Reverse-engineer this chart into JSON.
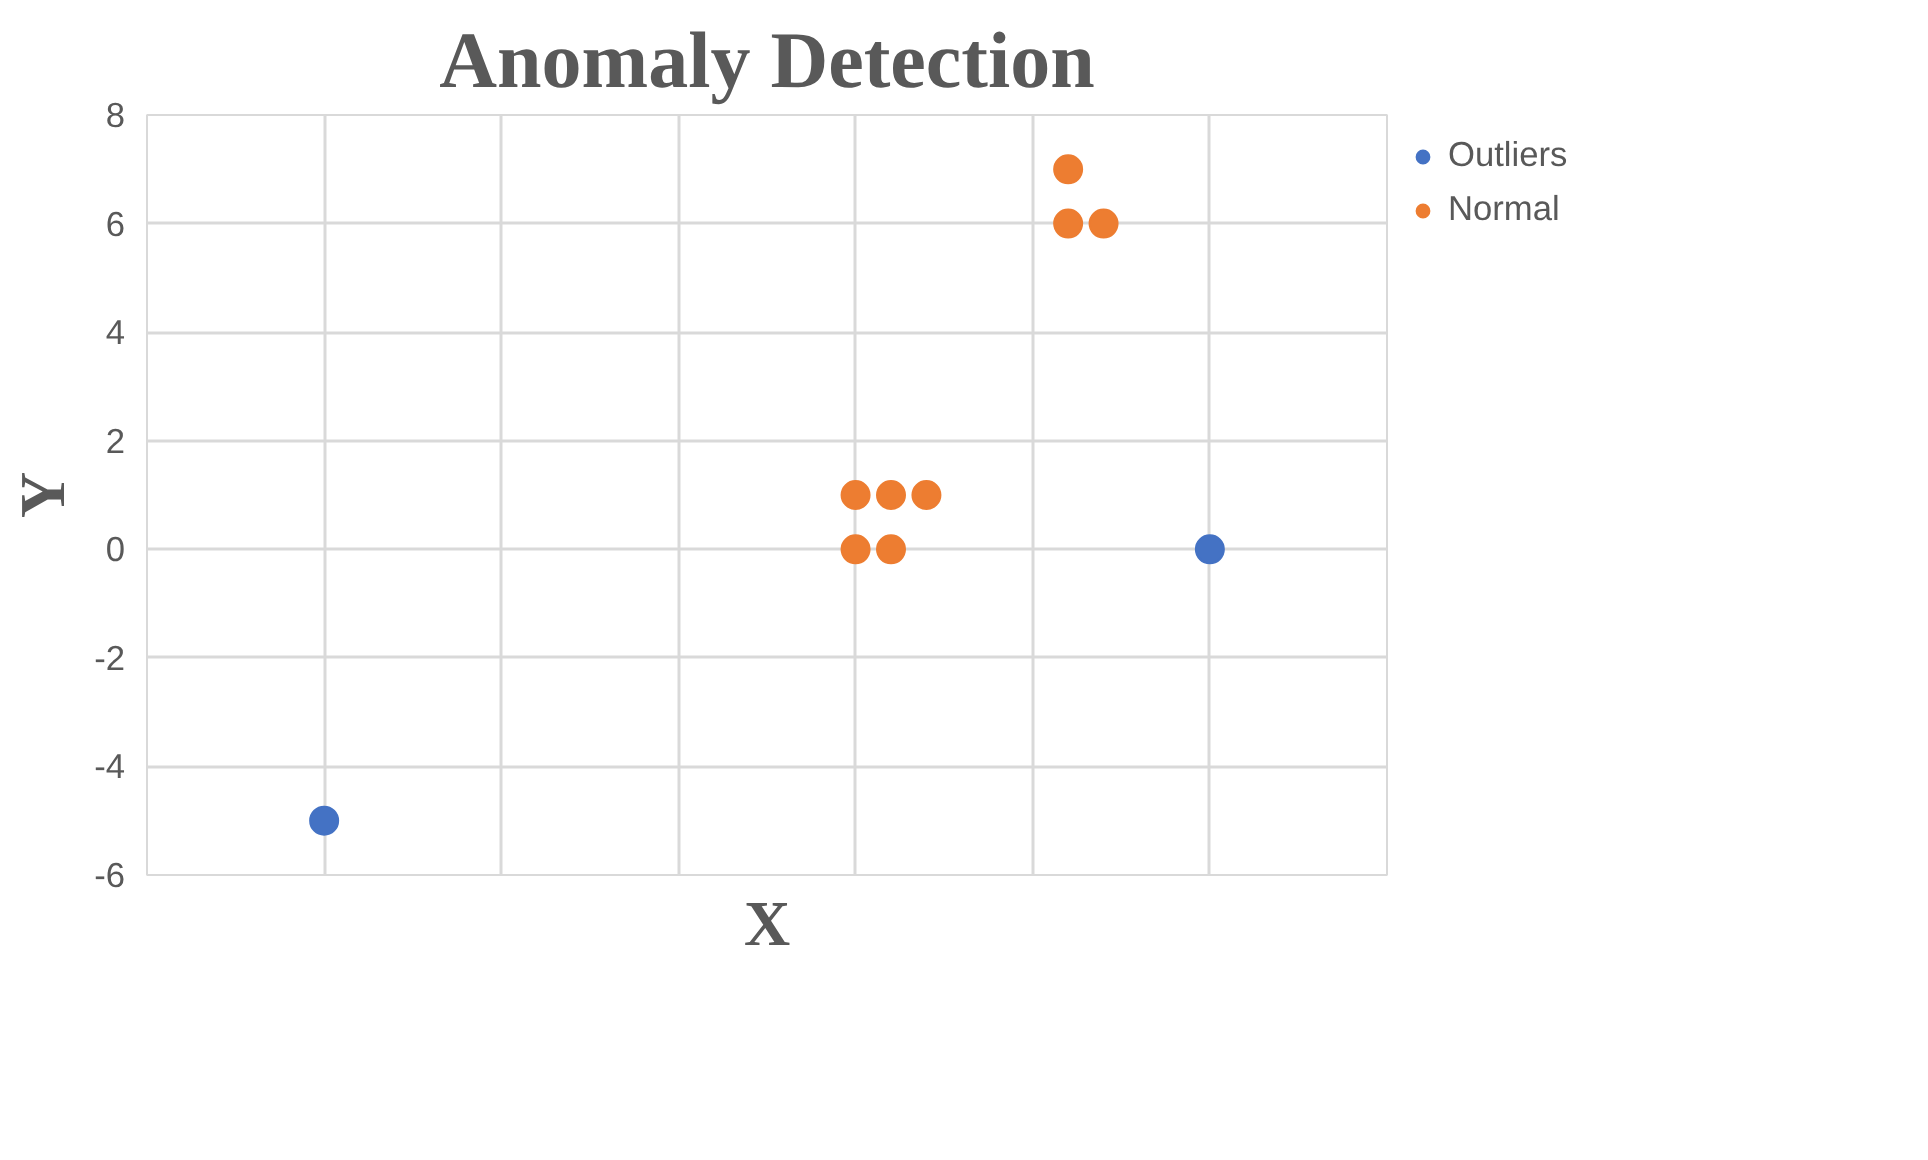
{
  "chart_data": {
    "type": "scatter",
    "title": "Anomaly Detection",
    "xlabel": "X",
    "ylabel": "Y",
    "categories": [
      null,
      null,
      null,
      null,
      null,
      null,
      null,
      null,
      null,
      null,
      null,
      null,
      null,
      null,
      null,
      null,
      null,
      null,
      null,
      null,
      null,
      null,
      null,
      null,
      null,
      null,
      null,
      null,
      null,
      null,
      null,
      null,
      null,
      null,
      null,
      null
    ],
    "ylim": [
      -6,
      8
    ],
    "yticks": [
      -6,
      -4,
      -2,
      0,
      2,
      4,
      6,
      8
    ],
    "grid": true,
    "legend": "top right",
    "marker": "circle",
    "series": [
      {
        "name": "Outliers",
        "color": "#4472c4",
        "values": [
          null,
          null,
          null,
          null,
          null,
          -5,
          null,
          null,
          null,
          null,
          null,
          null,
          null,
          null,
          null,
          null,
          null,
          null,
          null,
          null,
          null,
          null,
          null,
          null,
          null,
          null,
          null,
          null,
          null,
          null,
          0,
          null,
          null,
          null,
          null,
          null
        ]
      },
      {
        "name": "Normal",
        "color": "#ed7d31",
        "values": [
          null,
          null,
          null,
          null,
          null,
          null,
          null,
          null,
          null,
          null,
          null,
          null,
          null,
          null,
          null,
          null,
          null,
          null,
          null,
          null,
          1,
          1,
          1,
          null,
          null,
          null,
          7,
          6,
          null,
          null,
          null,
          null,
          null,
          null,
          null,
          null
        ]
      },
      {
        "color": "#ed7d31",
        "values": [
          null,
          null,
          null,
          null,
          null,
          null,
          null,
          null,
          null,
          null,
          null,
          null,
          null,
          null,
          null,
          null,
          null,
          null,
          null,
          null,
          0,
          0,
          null,
          null,
          null,
          null,
          6,
          null,
          null,
          null,
          null,
          null,
          null,
          null,
          null,
          null
        ]
      }
    ]
  }
}
